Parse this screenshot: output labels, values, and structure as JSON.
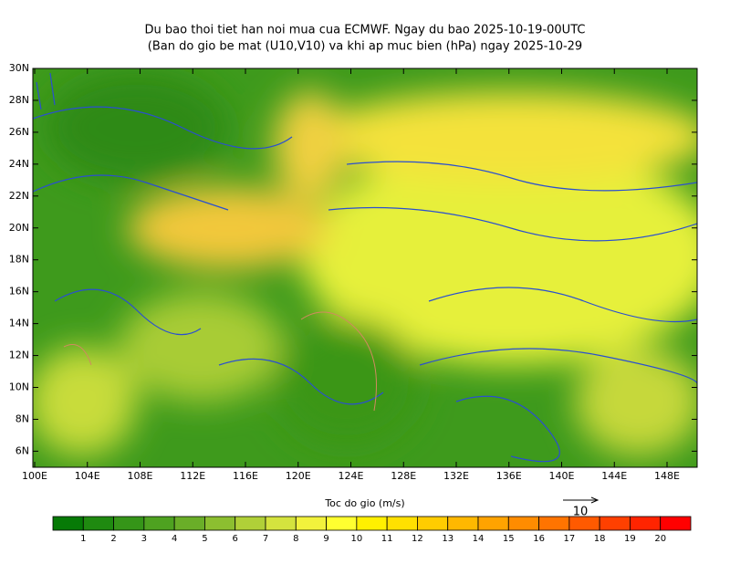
{
  "title": [
    "Du bao thoi tiet han noi mua cua ECMWF. Ngay du bao 2025-10-19-00UTC",
    "(Ban do gio be mat (U10,V10) va khi ap muc bien (hPa) ngay 2025-10-29"
  ],
  "map": {
    "lat_ticks": [
      "30N",
      "28N",
      "26N",
      "24N",
      "22N",
      "20N",
      "18N",
      "16N",
      "14N",
      "12N",
      "10N",
      "8N",
      "6N"
    ],
    "lon_ticks": [
      "100E",
      "104E",
      "108E",
      "112E",
      "116E",
      "120E",
      "124E",
      "128E",
      "132E",
      "136E",
      "140E",
      "144E",
      "148E"
    ]
  },
  "colorbar": {
    "title": "Toc do gio (m/s)",
    "labels": [
      "1",
      "2",
      "3",
      "4",
      "5",
      "6",
      "7",
      "8",
      "9",
      "10",
      "11",
      "12",
      "13",
      "14",
      "15",
      "16",
      "17",
      "18",
      "19",
      "20"
    ],
    "colors": [
      "#067a06",
      "#1f8a10",
      "#359518",
      "#4ea220",
      "#6aae28",
      "#8cbf30",
      "#b0d038",
      "#d4e33e",
      "#f2f23c",
      "#ffff30",
      "#fff000",
      "#ffe000",
      "#ffcc00",
      "#ffb800",
      "#ffa300",
      "#ff8c00",
      "#ff7400",
      "#ff5a00",
      "#ff4000",
      "#ff2400",
      "#ff0000"
    ]
  },
  "reference_vector": {
    "label": "10"
  }
}
